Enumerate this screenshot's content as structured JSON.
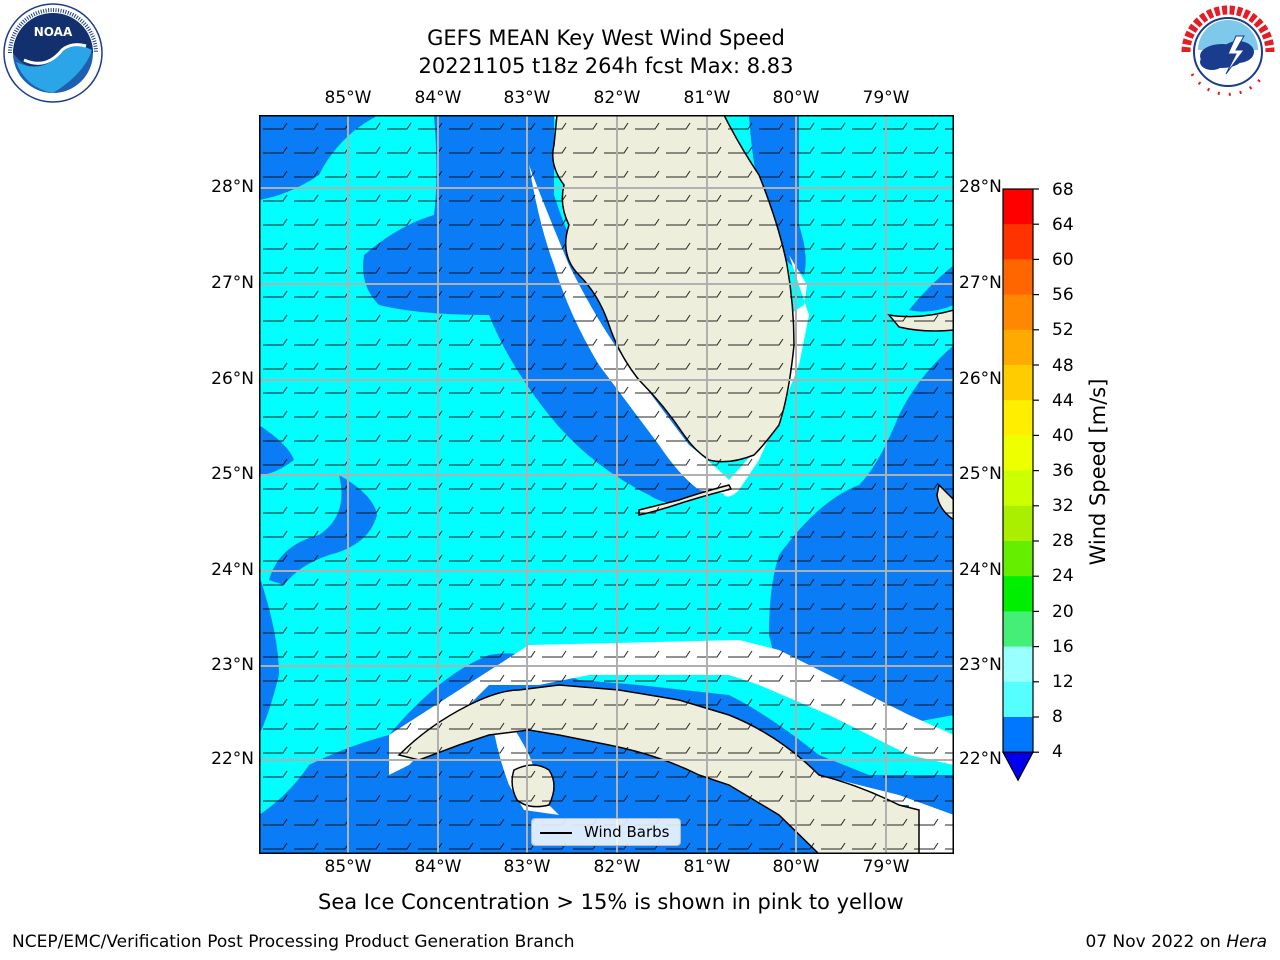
{
  "title_line1": "GEFS MEAN Key West Wind Speed",
  "title_line2": "20221105 t18z 264h fcst   Max: 8.83",
  "lon_labels": [
    "85°W",
    "84°W",
    "83°W",
    "82°W",
    "81°W",
    "80°W",
    "79°W"
  ],
  "lat_labels": [
    "28°N",
    "27°N",
    "26°N",
    "25°N",
    "24°N",
    "23°N",
    "22°N"
  ],
  "colorbar": {
    "title": "Wind Speed [m/s]",
    "ticks": [
      "68",
      "64",
      "60",
      "56",
      "52",
      "48",
      "44",
      "40",
      "36",
      "32",
      "28",
      "24",
      "20",
      "16",
      "12",
      "8",
      "4"
    ],
    "colors": [
      "#ff0000",
      "#ff3300",
      "#ff6600",
      "#ff8800",
      "#ffaa00",
      "#ffcc00",
      "#ffee00",
      "#eeff00",
      "#ccff00",
      "#aaee00",
      "#66ee00",
      "#00ee00",
      "#44ee77",
      "#99ffff",
      "#55ffff",
      "#00ffff",
      "#0077ff"
    ],
    "extend_color": "#0000ee"
  },
  "legend_label": "Wind Barbs",
  "subtitle": "Sea Ice Concentration > 15% is shown in pink to yellow",
  "credit_left": "NCEP/EMC/Verification Post Processing Product Generation Branch",
  "credit_right_date": "07 Nov 2022 on ",
  "credit_right_host": "Hera",
  "logos": {
    "left": "noaa-logo",
    "right": "nws-logo"
  },
  "map_colors": {
    "cyan": "#00ffff",
    "blue": "#0a7cf5",
    "deep_blue": "#0000ee",
    "land": "#eeeedd",
    "coast_white": "#ffffff",
    "grid": "#b0b0b0"
  }
}
